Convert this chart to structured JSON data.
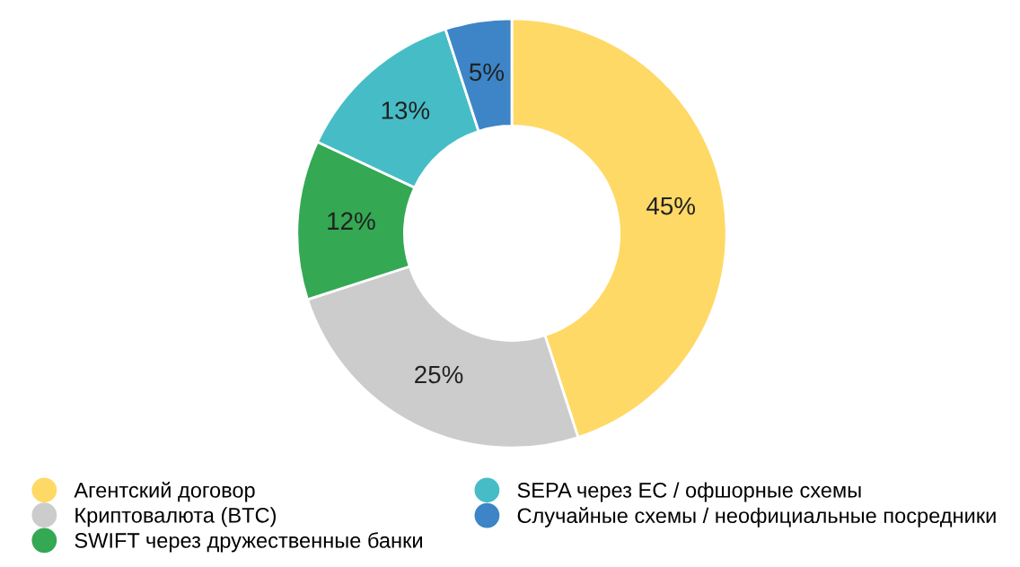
{
  "chart_data": {
    "type": "donut",
    "categories": [
      "Агентский договор",
      "Криптовалюта (BTC)",
      "SWIFT через дружественные банки",
      "SEPA через ЕС / офшорные схемы",
      "Случайные схемы / неофициальные посредники"
    ],
    "values": [
      45,
      25,
      12,
      13,
      5
    ],
    "colors": [
      "#ffd966",
      "#cccccc",
      "#34a853",
      "#46bdc6",
      "#3d85c6"
    ],
    "value_labels": [
      "45%",
      "25%",
      "12%",
      "13%",
      "5%"
    ],
    "legend": "bottom"
  }
}
